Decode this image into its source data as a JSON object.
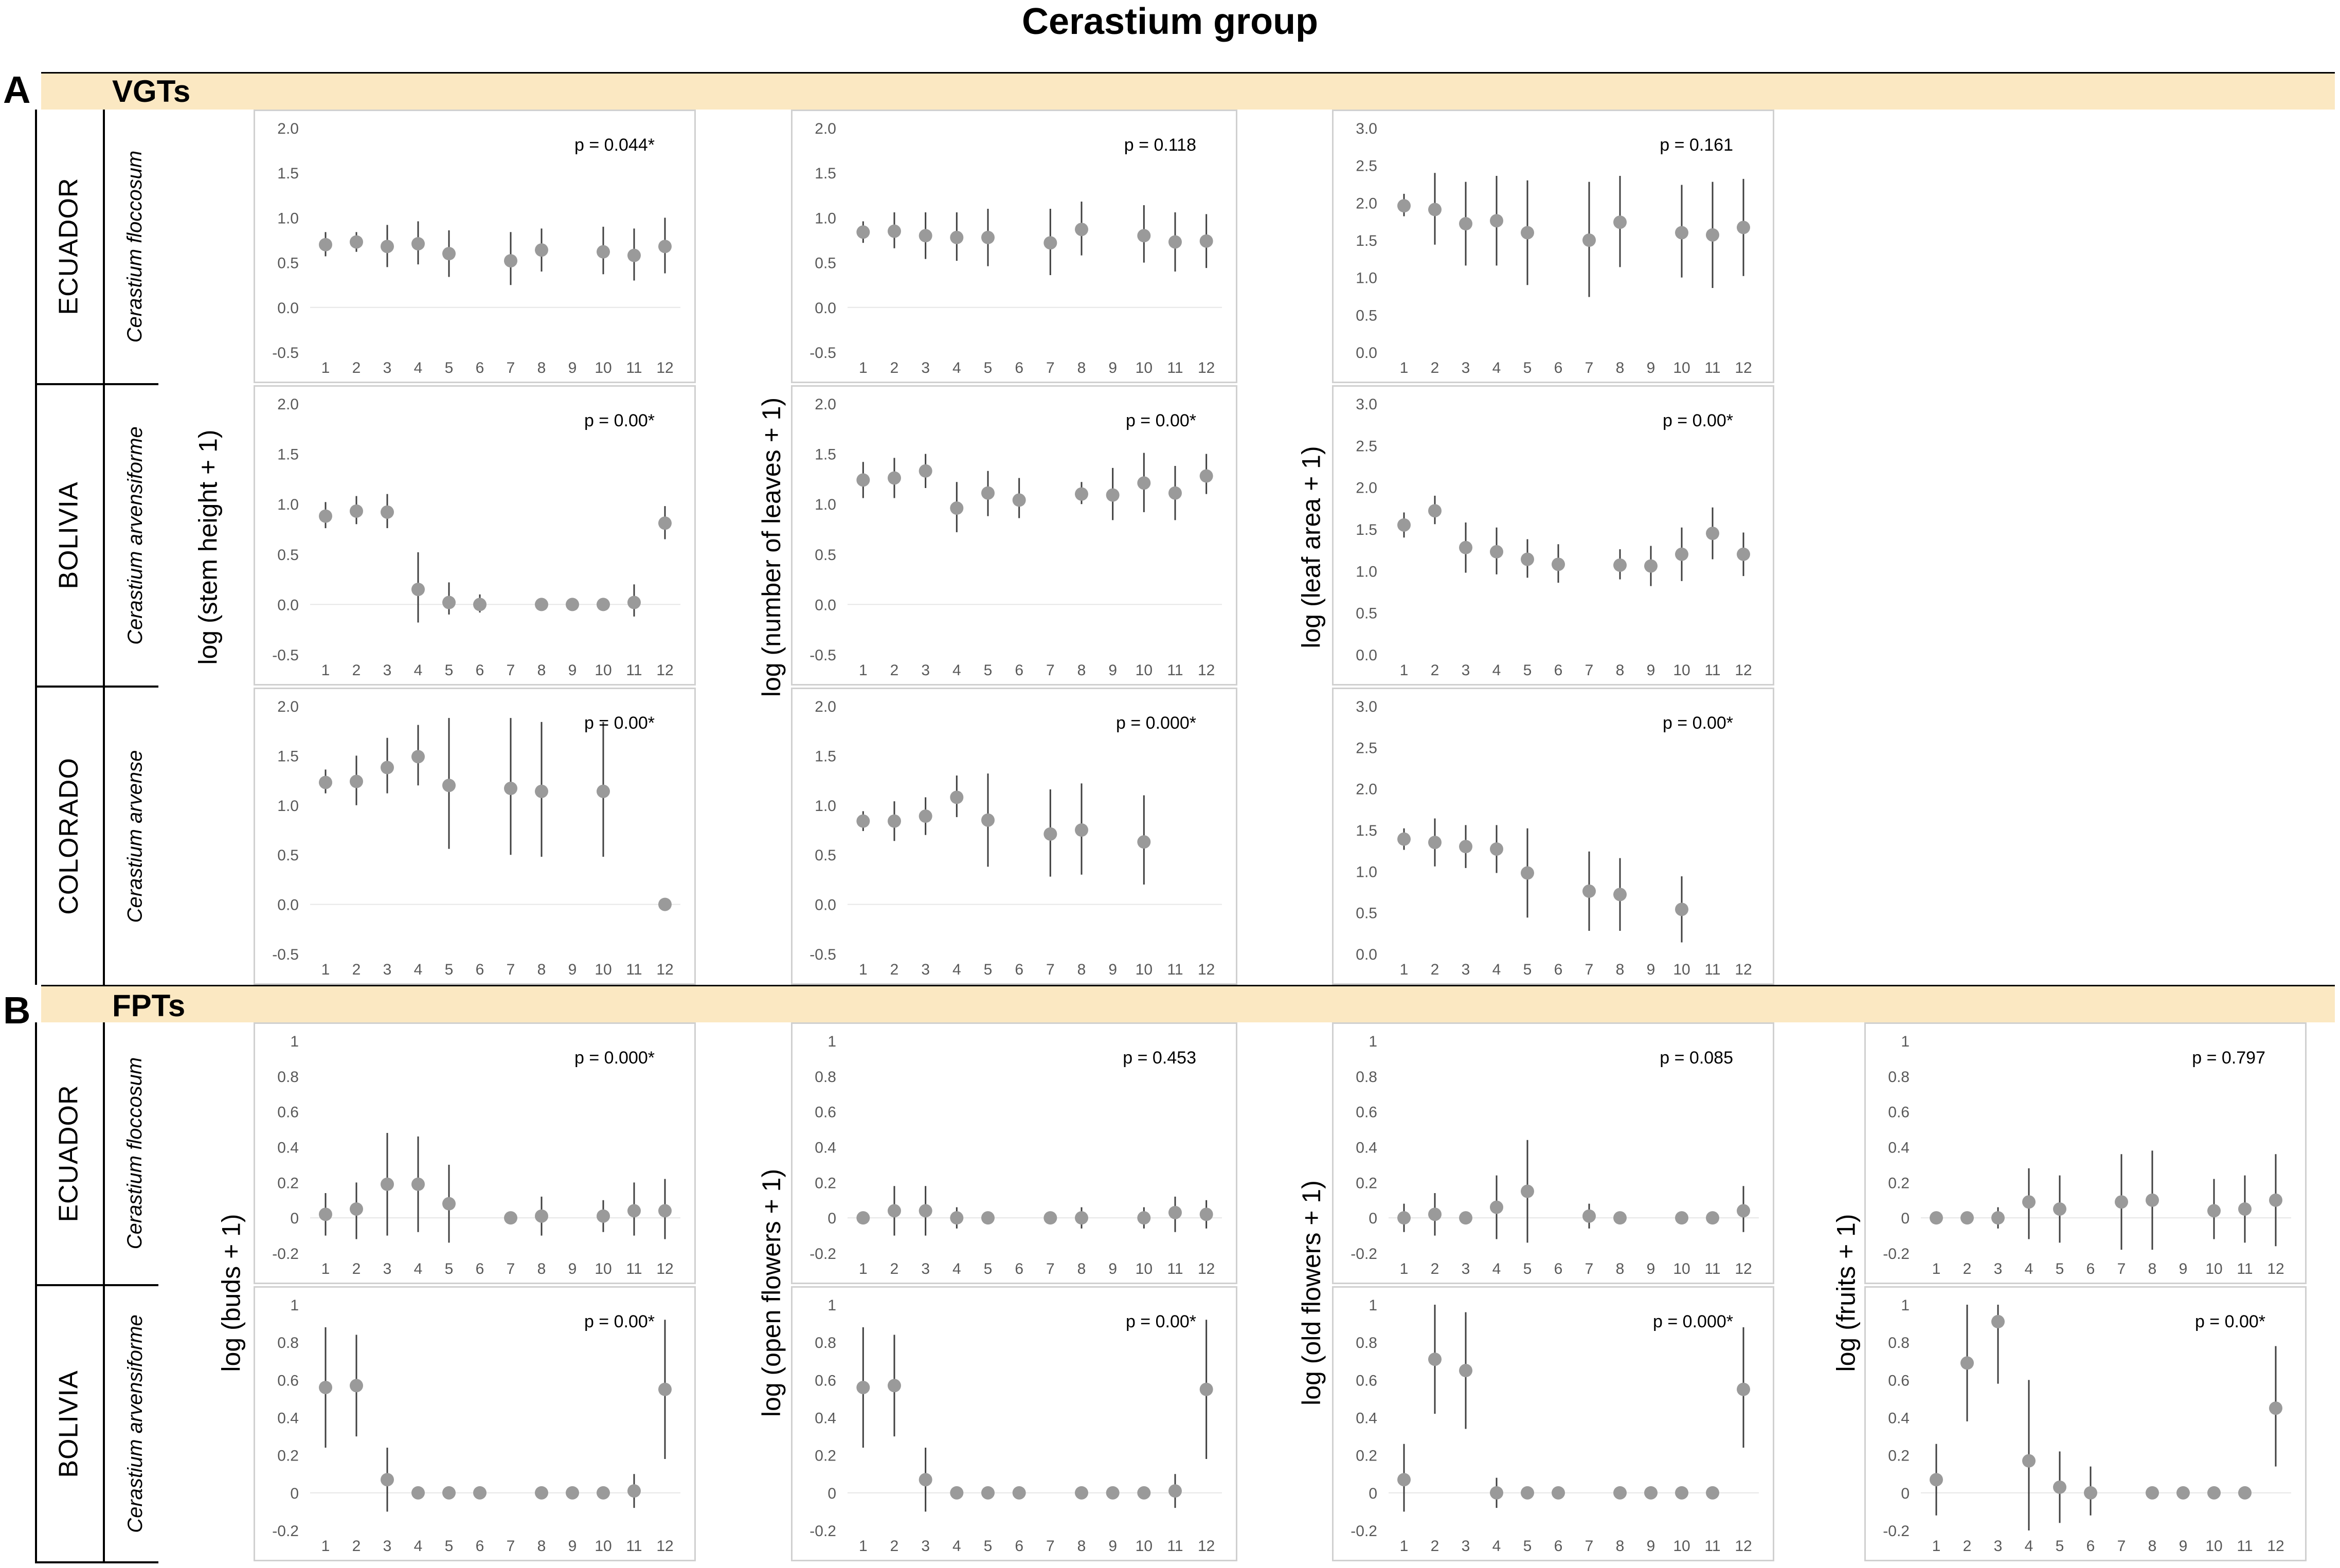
{
  "figure": {
    "title": "Cerastium group",
    "sections": [
      {
        "letter": "A",
        "band": "VGTs"
      },
      {
        "letter": "B",
        "band": "FPTs"
      }
    ],
    "rows": {
      "vgt": [
        {
          "country": "ECUADOR",
          "species": "Cerastium floccosum"
        },
        {
          "country": "BOLIVIA",
          "species": "Cerastium arvensiforme"
        },
        {
          "country": "COLORADO",
          "species": "Cerastium arvense"
        }
      ],
      "fpt": [
        {
          "country": "ECUADOR",
          "species": "Cerastium floccosum"
        },
        {
          "country": "BOLIVIA",
          "species": "Cerastium arvensiforme"
        }
      ]
    },
    "ylabels": {
      "vgt": [
        "log (stem height + 1)",
        "log  (number of leaves + 1)",
        "log  (leaf area + 1)"
      ],
      "fpt": [
        "log  (buds + 1)",
        "log  (open flowers + 1)",
        "log  (old flowers + 1)",
        "log  (fruits + 1)"
      ]
    }
  },
  "chart_data": [
    {
      "id": "vgt-stem-ecuador",
      "type": "scatter",
      "pvalue": "p = 0.044*",
      "ylim": [
        -0.5,
        2.0
      ],
      "yticks": [
        "2.0",
        "1.5",
        "1.0",
        "0.5",
        "0.0",
        "-0.5"
      ],
      "x": [
        1,
        2,
        3,
        4,
        5,
        6,
        7,
        8,
        9,
        10,
        11,
        12
      ],
      "y": [
        0.7,
        0.73,
        0.68,
        0.71,
        0.6,
        null,
        0.52,
        0.64,
        null,
        0.62,
        0.58,
        0.68
      ],
      "lo": [
        0.57,
        0.62,
        0.45,
        0.48,
        0.34,
        null,
        0.25,
        0.4,
        null,
        0.37,
        0.3,
        0.38
      ],
      "hi": [
        0.84,
        0.84,
        0.92,
        0.96,
        0.86,
        null,
        0.84,
        0.88,
        null,
        0.9,
        0.88,
        1.0
      ]
    },
    {
      "id": "vgt-stem-bolivia",
      "type": "scatter",
      "pvalue": "p = 0.00*",
      "ylim": [
        -0.5,
        2.0
      ],
      "yticks": [
        "2.0",
        "1.5",
        "1.0",
        "0.5",
        "0.0",
        "-0.5"
      ],
      "x": [
        1,
        2,
        3,
        4,
        5,
        6,
        7,
        8,
        9,
        10,
        11,
        12
      ],
      "y": [
        0.88,
        0.93,
        0.92,
        0.15,
        0.02,
        0.0,
        null,
        0.0,
        0.0,
        0.0,
        0.02,
        0.81
      ],
      "lo": [
        0.76,
        0.8,
        0.76,
        -0.18,
        -0.1,
        -0.08,
        null,
        null,
        null,
        null,
        -0.12,
        0.65
      ],
      "hi": [
        1.02,
        1.08,
        1.1,
        0.52,
        0.22,
        0.1,
        null,
        null,
        null,
        null,
        0.2,
        0.98
      ]
    },
    {
      "id": "vgt-stem-colorado",
      "type": "scatter",
      "pvalue": "p = 0.00*",
      "ylim": [
        -0.5,
        2.0
      ],
      "yticks": [
        "2.0",
        "1.5",
        "1.0",
        "0.5",
        "0.0",
        "-0.5"
      ],
      "x": [
        1,
        2,
        3,
        4,
        5,
        6,
        7,
        8,
        9,
        10,
        11,
        12
      ],
      "y": [
        1.23,
        1.24,
        1.38,
        1.49,
        1.2,
        null,
        1.17,
        1.14,
        null,
        1.14,
        null,
        0.0
      ],
      "lo": [
        1.12,
        1.0,
        1.12,
        1.2,
        0.56,
        null,
        0.5,
        0.48,
        null,
        0.48,
        null,
        null
      ],
      "hi": [
        1.36,
        1.5,
        1.68,
        1.81,
        1.88,
        null,
        1.88,
        1.84,
        null,
        1.84,
        null,
        null
      ]
    },
    {
      "id": "vgt-leaves-ecuador",
      "type": "scatter",
      "pvalue": "p = 0.118",
      "ylim": [
        -0.5,
        2.0
      ],
      "yticks": [
        "2.0",
        "1.5",
        "1.0",
        "0.5",
        "0.0",
        "-0.5"
      ],
      "x": [
        1,
        2,
        3,
        4,
        5,
        6,
        7,
        8,
        9,
        10,
        11,
        12
      ],
      "y": [
        0.84,
        0.85,
        0.8,
        0.78,
        0.78,
        null,
        0.72,
        0.87,
        null,
        0.8,
        0.73,
        0.74
      ],
      "lo": [
        0.72,
        0.66,
        0.54,
        0.52,
        0.46,
        null,
        0.36,
        0.58,
        null,
        0.5,
        0.4,
        0.44
      ],
      "hi": [
        0.96,
        1.06,
        1.06,
        1.06,
        1.1,
        null,
        1.1,
        1.18,
        null,
        1.14,
        1.06,
        1.04
      ]
    },
    {
      "id": "vgt-leaves-bolivia",
      "type": "scatter",
      "pvalue": "p = 0.00*",
      "ylim": [
        -0.5,
        2.0
      ],
      "yticks": [
        "2.0",
        "1.5",
        "1.0",
        "0.5",
        "0.0",
        "-0.5"
      ],
      "x": [
        1,
        2,
        3,
        4,
        5,
        6,
        7,
        8,
        9,
        10,
        11,
        12
      ],
      "y": [
        1.24,
        1.26,
        1.33,
        0.96,
        1.11,
        1.04,
        null,
        1.1,
        1.09,
        1.21,
        1.11,
        1.28
      ],
      "lo": [
        1.06,
        1.06,
        1.16,
        0.72,
        0.88,
        0.86,
        null,
        1.0,
        0.84,
        0.92,
        0.84,
        1.1
      ],
      "hi": [
        1.42,
        1.46,
        1.5,
        1.22,
        1.33,
        1.26,
        null,
        1.22,
        1.36,
        1.51,
        1.38,
        1.5
      ]
    },
    {
      "id": "vgt-leaves-colorado",
      "type": "scatter",
      "pvalue": "p = 0.000*",
      "ylim": [
        -0.5,
        2.0
      ],
      "yticks": [
        "2.0",
        "1.5",
        "1.0",
        "0.5",
        "0.0",
        "-0.5"
      ],
      "x": [
        1,
        2,
        3,
        4,
        5,
        6,
        7,
        8,
        9,
        10,
        11,
        12
      ],
      "y": [
        0.84,
        0.84,
        0.89,
        1.08,
        0.85,
        null,
        0.71,
        0.75,
        null,
        0.63,
        null,
        null
      ],
      "lo": [
        0.74,
        0.64,
        0.7,
        0.88,
        0.38,
        null,
        0.28,
        0.3,
        null,
        0.2,
        null,
        null
      ],
      "hi": [
        0.94,
        1.04,
        1.08,
        1.3,
        1.32,
        null,
        1.16,
        1.22,
        null,
        1.1,
        null,
        null
      ]
    },
    {
      "id": "vgt-area-ecuador",
      "type": "scatter",
      "pvalue": "p = 0.161",
      "ylim": [
        0.0,
        3.0
      ],
      "yticks": [
        "3.0",
        "2.5",
        "2.0",
        "1.5",
        "1.0",
        "0.5",
        "0.0"
      ],
      "x": [
        1,
        2,
        3,
        4,
        5,
        6,
        7,
        8,
        9,
        10,
        11,
        12
      ],
      "y": [
        1.96,
        1.91,
        1.72,
        1.76,
        1.6,
        null,
        1.5,
        1.74,
        null,
        1.6,
        1.57,
        1.67
      ],
      "lo": [
        1.82,
        1.44,
        1.16,
        1.16,
        0.9,
        null,
        0.74,
        1.14,
        null,
        1.0,
        0.86,
        1.02
      ],
      "hi": [
        2.12,
        2.4,
        2.28,
        2.36,
        2.3,
        null,
        2.28,
        2.36,
        null,
        2.24,
        2.28,
        2.32
      ]
    },
    {
      "id": "vgt-area-bolivia",
      "type": "scatter",
      "pvalue": "p = 0.00*",
      "ylim": [
        0.0,
        3.0
      ],
      "yticks": [
        "3.0",
        "2.5",
        "2.0",
        "1.5",
        "1.0",
        "0.5",
        "0.0"
      ],
      "x": [
        1,
        2,
        3,
        4,
        5,
        6,
        7,
        8,
        9,
        10,
        11,
        12
      ],
      "y": [
        1.55,
        1.72,
        1.28,
        1.23,
        1.14,
        1.08,
        null,
        1.07,
        1.06,
        1.2,
        1.45,
        1.2
      ],
      "lo": [
        1.4,
        1.56,
        0.98,
        0.96,
        0.92,
        0.86,
        null,
        0.9,
        0.82,
        0.88,
        1.14,
        0.94
      ],
      "hi": [
        1.7,
        1.9,
        1.58,
        1.52,
        1.38,
        1.32,
        null,
        1.26,
        1.3,
        1.52,
        1.76,
        1.46
      ]
    },
    {
      "id": "vgt-area-colorado",
      "type": "scatter",
      "pvalue": "p = 0.00*",
      "ylim": [
        0.0,
        3.0
      ],
      "yticks": [
        "3.0",
        "2.5",
        "2.0",
        "1.5",
        "1.0",
        "0.5",
        "0.0"
      ],
      "x": [
        1,
        2,
        3,
        4,
        5,
        6,
        7,
        8,
        9,
        10,
        11,
        12
      ],
      "y": [
        1.39,
        1.35,
        1.3,
        1.27,
        0.98,
        null,
        0.76,
        0.72,
        null,
        0.54,
        null,
        null
      ],
      "lo": [
        1.26,
        1.06,
        1.04,
        0.98,
        0.44,
        null,
        0.28,
        0.28,
        null,
        0.14,
        null,
        null
      ],
      "hi": [
        1.52,
        1.64,
        1.56,
        1.56,
        1.52,
        null,
        1.24,
        1.16,
        null,
        0.94,
        null,
        null
      ]
    },
    {
      "id": "fpt-buds-ecuador",
      "type": "scatter",
      "pvalue": "p = 0.000*",
      "ylim": [
        -0.2,
        1.0
      ],
      "yticks": [
        "1",
        "0.8",
        "0.6",
        "0.4",
        "0.2",
        "0",
        "-0.2"
      ],
      "x": [
        1,
        2,
        3,
        4,
        5,
        6,
        7,
        8,
        9,
        10,
        11,
        12
      ],
      "y": [
        0.02,
        0.05,
        0.19,
        0.19,
        0.08,
        null,
        0.0,
        0.01,
        null,
        0.01,
        0.04,
        0.04
      ],
      "lo": [
        -0.1,
        -0.12,
        -0.1,
        -0.08,
        -0.14,
        null,
        null,
        -0.1,
        null,
        -0.08,
        -0.1,
        -0.12
      ],
      "hi": [
        0.14,
        0.2,
        0.48,
        0.46,
        0.3,
        null,
        null,
        0.12,
        null,
        0.1,
        0.2,
        0.22
      ]
    },
    {
      "id": "fpt-buds-bolivia",
      "type": "scatter",
      "pvalue": "p = 0.00*",
      "ylim": [
        -0.2,
        1.0
      ],
      "yticks": [
        "1",
        "0.8",
        "0.6",
        "0.4",
        "0.2",
        "0",
        "-0.2"
      ],
      "x": [
        1,
        2,
        3,
        4,
        5,
        6,
        7,
        8,
        9,
        10,
        11,
        12
      ],
      "y": [
        0.56,
        0.57,
        0.07,
        0.0,
        0.0,
        0.0,
        null,
        0.0,
        0.0,
        0.0,
        0.01,
        0.55
      ],
      "lo": [
        0.24,
        0.3,
        -0.1,
        null,
        null,
        null,
        null,
        null,
        null,
        null,
        -0.08,
        0.18
      ],
      "hi": [
        0.88,
        0.84,
        0.24,
        null,
        null,
        null,
        null,
        null,
        null,
        null,
        0.1,
        0.92
      ]
    },
    {
      "id": "fpt-open-ecuador",
      "type": "scatter",
      "pvalue": "p = 0.453",
      "ylim": [
        -0.2,
        1.0
      ],
      "yticks": [
        "1",
        "0.8",
        "0.6",
        "0.4",
        "0.2",
        "0",
        "-0.2"
      ],
      "x": [
        1,
        2,
        3,
        4,
        5,
        6,
        7,
        8,
        9,
        10,
        11,
        12
      ],
      "y": [
        0.0,
        0.04,
        0.04,
        0.0,
        0.0,
        null,
        0.0,
        0.0,
        null,
        0.0,
        0.03,
        0.02
      ],
      "lo": [
        null,
        -0.1,
        -0.1,
        -0.06,
        null,
        null,
        null,
        -0.06,
        null,
        -0.06,
        -0.08,
        -0.06
      ],
      "hi": [
        null,
        0.18,
        0.18,
        0.06,
        null,
        null,
        null,
        0.06,
        null,
        0.06,
        0.12,
        0.1
      ]
    },
    {
      "id": "fpt-open-bolivia",
      "type": "scatter",
      "pvalue": "p = 0.00*",
      "ylim": [
        -0.2,
        1.0
      ],
      "yticks": [
        "1",
        "0.8",
        "0.6",
        "0.4",
        "0.2",
        "0",
        "-0.2"
      ],
      "x": [
        1,
        2,
        3,
        4,
        5,
        6,
        7,
        8,
        9,
        10,
        11,
        12
      ],
      "y": [
        0.56,
        0.57,
        0.07,
        0.0,
        0.0,
        0.0,
        null,
        0.0,
        0.0,
        0.0,
        0.01,
        0.55
      ],
      "lo": [
        0.24,
        0.3,
        -0.1,
        null,
        null,
        null,
        null,
        null,
        null,
        null,
        -0.08,
        0.18
      ],
      "hi": [
        0.88,
        0.84,
        0.24,
        null,
        null,
        null,
        null,
        null,
        null,
        null,
        0.1,
        0.92
      ]
    },
    {
      "id": "fpt-old-ecuador",
      "type": "scatter",
      "pvalue": "p = 0.085",
      "ylim": [
        -0.2,
        1.0
      ],
      "yticks": [
        "1",
        "0.8",
        "0.6",
        "0.4",
        "0.2",
        "0",
        "-0.2"
      ],
      "x": [
        1,
        2,
        3,
        4,
        5,
        6,
        7,
        8,
        9,
        10,
        11,
        12
      ],
      "y": [
        0.0,
        0.02,
        0.0,
        0.06,
        0.15,
        null,
        0.01,
        0.0,
        null,
        0.0,
        0.0,
        0.04
      ],
      "lo": [
        -0.08,
        -0.1,
        null,
        -0.12,
        -0.14,
        null,
        -0.06,
        null,
        null,
        null,
        null,
        -0.08
      ],
      "hi": [
        0.08,
        0.14,
        null,
        0.24,
        0.44,
        null,
        0.08,
        null,
        null,
        null,
        null,
        0.18
      ]
    },
    {
      "id": "fpt-old-bolivia",
      "type": "scatter",
      "pvalue": "p = 0.000*",
      "ylim": [
        -0.2,
        1.0
      ],
      "yticks": [
        "1",
        "0.8",
        "0.6",
        "0.4",
        "0.2",
        "0",
        "-0.2"
      ],
      "x": [
        1,
        2,
        3,
        4,
        5,
        6,
        7,
        8,
        9,
        10,
        11,
        12
      ],
      "y": [
        0.07,
        0.71,
        0.65,
        0.0,
        0.0,
        0.0,
        null,
        0.0,
        0.0,
        0.0,
        0.0,
        0.55
      ],
      "lo": [
        -0.1,
        0.42,
        0.34,
        -0.08,
        null,
        null,
        null,
        null,
        null,
        null,
        null,
        0.24
      ],
      "hi": [
        0.26,
        1.0,
        0.96,
        0.08,
        null,
        null,
        null,
        null,
        null,
        null,
        null,
        0.88
      ]
    },
    {
      "id": "fpt-fruits-ecuador",
      "type": "scatter",
      "pvalue": "p = 0.797",
      "ylim": [
        -0.2,
        1.0
      ],
      "yticks": [
        "1",
        "0.8",
        "0.6",
        "0.4",
        "0.2",
        "0",
        "-0.2"
      ],
      "x": [
        1,
        2,
        3,
        4,
        5,
        6,
        7,
        8,
        9,
        10,
        11,
        12
      ],
      "y": [
        0.0,
        0.0,
        0.0,
        0.09,
        0.05,
        null,
        0.09,
        0.1,
        null,
        0.04,
        0.05,
        0.1
      ],
      "lo": [
        null,
        null,
        -0.06,
        -0.12,
        -0.14,
        null,
        -0.18,
        -0.18,
        null,
        -0.12,
        -0.14,
        -0.16
      ],
      "hi": [
        null,
        null,
        0.06,
        0.28,
        0.24,
        null,
        0.36,
        0.38,
        null,
        0.22,
        0.24,
        0.36
      ]
    },
    {
      "id": "fpt-fruits-bolivia",
      "type": "scatter",
      "pvalue": "p = 0.00*",
      "ylim": [
        -0.2,
        1.0
      ],
      "yticks": [
        "1",
        "0.8",
        "0.6",
        "0.4",
        "0.2",
        "0",
        "-0.2"
      ],
      "x": [
        1,
        2,
        3,
        4,
        5,
        6,
        7,
        8,
        9,
        10,
        11,
        12
      ],
      "y": [
        0.07,
        0.69,
        0.91,
        0.17,
        0.03,
        0.0,
        null,
        0.0,
        0.0,
        0.0,
        0.0,
        0.45
      ],
      "lo": [
        -0.12,
        0.38,
        0.58,
        -0.2,
        -0.16,
        -0.12,
        null,
        null,
        null,
        null,
        null,
        0.14
      ],
      "hi": [
        0.26,
        1.0,
        1.0,
        0.6,
        0.22,
        0.14,
        null,
        null,
        null,
        null,
        null,
        0.78
      ]
    }
  ]
}
